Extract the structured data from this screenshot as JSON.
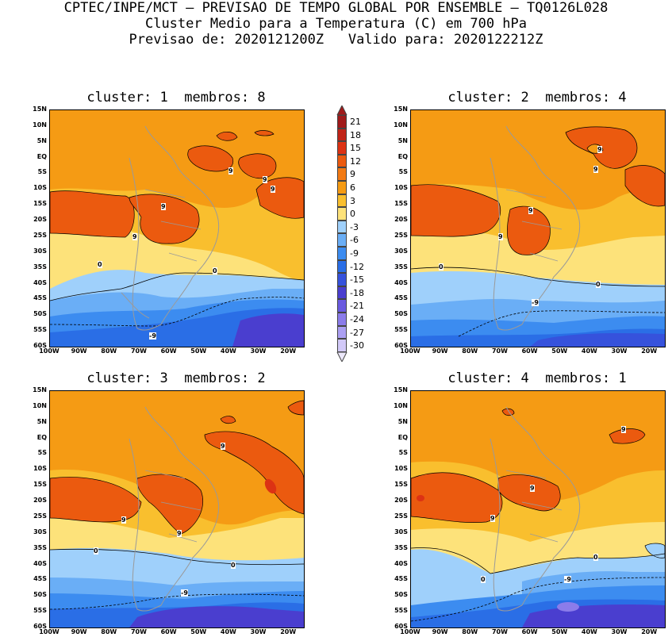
{
  "header": {
    "line1": "CPTEC/INPE/MCT — PREVISAO DE TEMPO GLOBAL POR ENSEMBLE — TQ0126L028",
    "line2": "Cluster Medio para a Temperatura (C) em 700 hPa",
    "line3": "Previsao de: 2020121200Z   Valido para: 2020122212Z"
  },
  "panels": [
    {
      "title": "cluster: 1  membros: 8"
    },
    {
      "title": "cluster: 2  membros: 4"
    },
    {
      "title": "cluster: 3  membros: 2"
    },
    {
      "title": "cluster: 4  membros: 1"
    }
  ],
  "lat_labels": [
    "15N",
    "10N",
    "5N",
    "EQ",
    "5S",
    "10S",
    "15S",
    "20S",
    "25S",
    "30S",
    "35S",
    "40S",
    "45S",
    "50S",
    "55S",
    "60S"
  ],
  "lon_labels": [
    "100W",
    "90W",
    "80W",
    "70W",
    "60W",
    "50W",
    "40W",
    "30W",
    "20W"
  ],
  "colorbar": {
    "levels": [
      "21",
      "18",
      "15",
      "12",
      "9",
      "6",
      "3",
      "0",
      "-3",
      "-6",
      "-9",
      "-12",
      "-15",
      "-18",
      "-21",
      "-24",
      "-27",
      "-30"
    ],
    "colors": [
      "#a01a1a",
      "#c02418",
      "#dc3214",
      "#eb5a0f",
      "#f27a14",
      "#f59b14",
      "#f9bf2e",
      "#fde27a",
      "#9fd0fb",
      "#6aaef6",
      "#3c8cf0",
      "#2a6ee6",
      "#3652dc",
      "#4a3ecf",
      "#6a5ae0",
      "#8b7cea",
      "#ab9ff2",
      "#d2c9f8"
    ]
  },
  "contour_labels": {
    "p1": [
      "9",
      "9",
      "9",
      "9",
      "9",
      "9",
      "0",
      "0",
      "-9"
    ],
    "p2": [
      "9",
      "9",
      "9",
      "9",
      "9",
      "0",
      "0",
      "-9"
    ],
    "p3": [
      "9",
      "9",
      "9",
      "0",
      "0",
      "-9"
    ],
    "p4": [
      "9",
      "9",
      "9",
      "9",
      "0",
      "0",
      "-9"
    ]
  }
}
